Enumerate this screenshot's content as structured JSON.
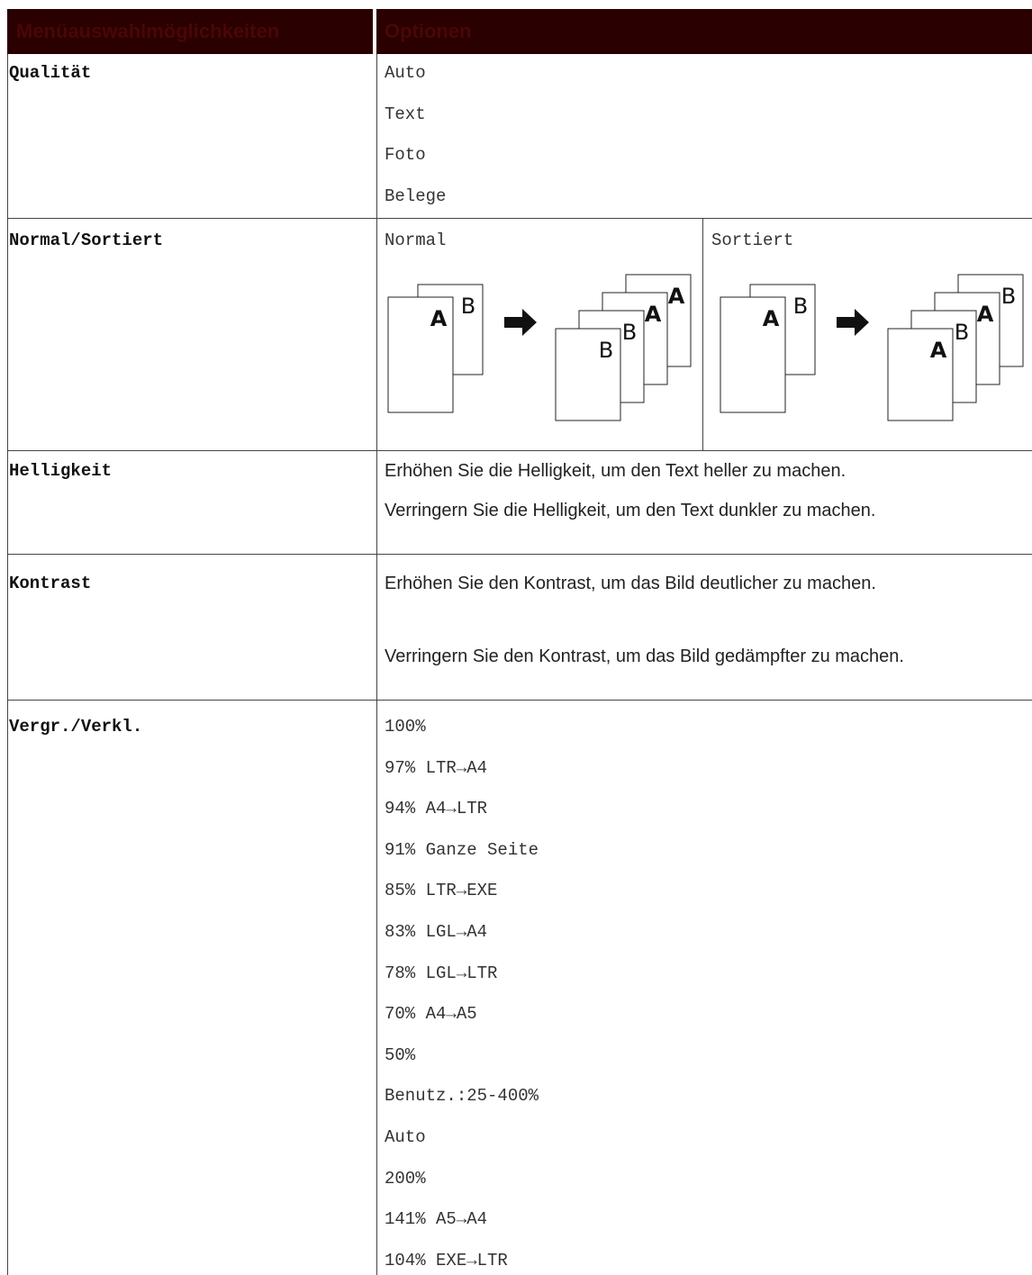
{
  "table": {
    "header": [
      "Menüauswahlmöglichkeiten",
      "Optionen"
    ],
    "rows": [
      {
        "label": "Qualität",
        "options": [
          "Auto",
          "Text",
          "Foto",
          "Belege"
        ]
      },
      {
        "label": "Normal/Sortiert",
        "normal": {
          "title": "Normal",
          "input": [
            "A",
            "B"
          ],
          "output": [
            "B",
            "B",
            "A",
            "A"
          ]
        },
        "sorted": {
          "title": "Sortiert",
          "input": [
            "A",
            "B"
          ],
          "output": [
            "A",
            "B",
            "A",
            "B"
          ]
        }
      },
      {
        "label": "Helligkeit",
        "texts": [
          "Erhöhen Sie die Helligkeit, um den Text heller zu machen.",
          "Verringern Sie die Helligkeit, um den Text dunkler zu machen."
        ]
      },
      {
        "label": "Kontrast",
        "texts": [
          "Erhöhen Sie den Kontrast, um das Bild deutlicher zu machen.",
          "Verringern Sie den Kontrast, um das Bild gedämpfter zu machen."
        ]
      },
      {
        "label": "Vergr./Verkl.",
        "options": [
          "100%",
          "97% LTR→A4",
          "94% A4→LTR",
          "91% Ganze Seite",
          "85% LTR→EXE",
          "83% LGL→A4",
          "78% LGL→LTR",
          "70% A4→A5",
          "50%",
          "Benutz.:25-400%",
          "Auto",
          "200%",
          "141% A5→A4",
          "104% EXE→LTR"
        ]
      }
    ]
  }
}
